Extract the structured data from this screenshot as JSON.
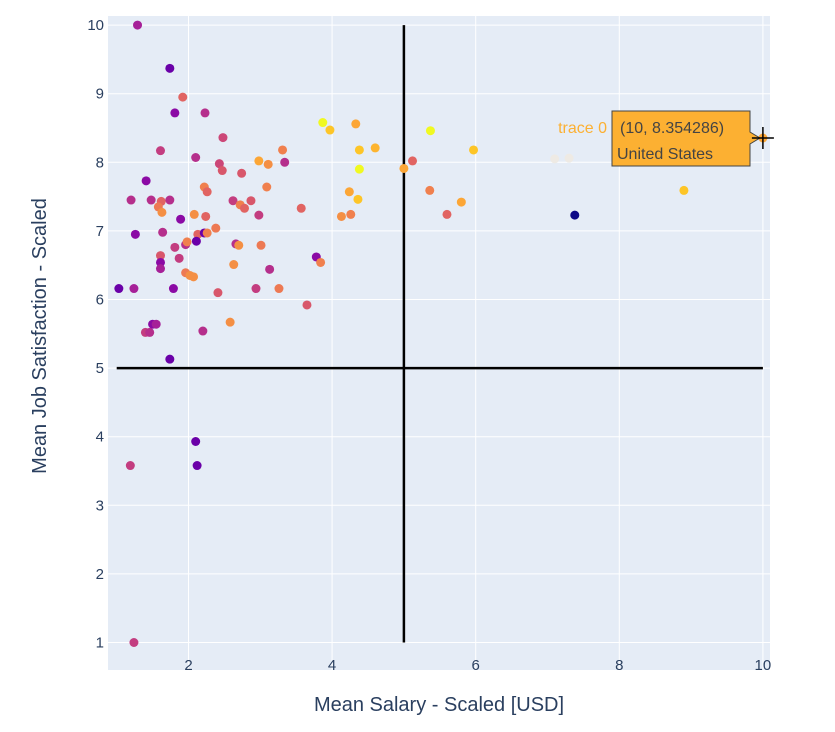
{
  "chart_data": {
    "type": "scatter",
    "title": "",
    "xlabel": "Mean Salary - Scaled [USD]",
    "ylabel": "Mean Job Satisfaction - Scaled",
    "xlim": [
      0.95,
      10.05
    ],
    "ylim": [
      0.95,
      10.05
    ],
    "xticks": [
      2,
      4,
      6,
      8,
      10
    ],
    "yticks": [
      1,
      2,
      3,
      4,
      5,
      6,
      7,
      8,
      9,
      10
    ],
    "grid": true,
    "plot_bg": "#e5ecf6",
    "reference_lines": {
      "x": 5,
      "y": 5,
      "color": "#000000"
    },
    "series": [
      {
        "points": [
          {
            "x": 1.29,
            "y": 10.0,
            "c": "#a62098"
          },
          {
            "x": 1.74,
            "y": 9.37,
            "c": "#6a00a8"
          },
          {
            "x": 1.92,
            "y": 8.95,
            "c": "#e16462"
          },
          {
            "x": 1.81,
            "y": 8.72,
            "c": "#8b0aa5"
          },
          {
            "x": 2.23,
            "y": 8.72,
            "c": "#b52f8c"
          },
          {
            "x": 2.48,
            "y": 8.36,
            "c": "#cc4778"
          },
          {
            "x": 1.61,
            "y": 8.17,
            "c": "#c33d80"
          },
          {
            "x": 2.1,
            "y": 8.07,
            "c": "#b52f8c"
          },
          {
            "x": 2.43,
            "y": 7.98,
            "c": "#cc4778"
          },
          {
            "x": 2.47,
            "y": 7.88,
            "c": "#d8576b"
          },
          {
            "x": 2.98,
            "y": 8.02,
            "c": "#fca636"
          },
          {
            "x": 3.11,
            "y": 7.97,
            "c": "#f48f44"
          },
          {
            "x": 3.31,
            "y": 8.18,
            "c": "#f0804e"
          },
          {
            "x": 3.34,
            "y": 8.0,
            "c": "#b52f8c"
          },
          {
            "x": 1.41,
            "y": 7.73,
            "c": "#8b0aa5"
          },
          {
            "x": 2.22,
            "y": 7.64,
            "c": "#f0804e"
          },
          {
            "x": 2.26,
            "y": 7.57,
            "c": "#e16462"
          },
          {
            "x": 2.74,
            "y": 7.84,
            "c": "#d8576b"
          },
          {
            "x": 3.09,
            "y": 7.64,
            "c": "#f0804e"
          },
          {
            "x": 1.2,
            "y": 7.45,
            "c": "#b52f8c"
          },
          {
            "x": 1.48,
            "y": 7.45,
            "c": "#b52f8c"
          },
          {
            "x": 1.62,
            "y": 7.43,
            "c": "#e16462"
          },
          {
            "x": 1.58,
            "y": 7.35,
            "c": "#ed7953"
          },
          {
            "x": 1.63,
            "y": 7.27,
            "c": "#f48f44"
          },
          {
            "x": 1.74,
            "y": 7.45,
            "c": "#b52f8c"
          },
          {
            "x": 1.89,
            "y": 7.17,
            "c": "#8b0aa5"
          },
          {
            "x": 2.08,
            "y": 7.24,
            "c": "#f48f44"
          },
          {
            "x": 2.24,
            "y": 7.21,
            "c": "#e16462"
          },
          {
            "x": 2.62,
            "y": 7.44,
            "c": "#c33d80"
          },
          {
            "x": 2.72,
            "y": 7.38,
            "c": "#f0804e"
          },
          {
            "x": 2.78,
            "y": 7.33,
            "c": "#e16462"
          },
          {
            "x": 2.87,
            "y": 7.44,
            "c": "#d8576b"
          },
          {
            "x": 2.98,
            "y": 7.23,
            "c": "#c33d80"
          },
          {
            "x": 2.66,
            "y": 6.81,
            "c": "#b52f8c"
          },
          {
            "x": 2.7,
            "y": 6.79,
            "c": "#f48f44"
          },
          {
            "x": 3.01,
            "y": 6.79,
            "c": "#ed7953"
          },
          {
            "x": 3.57,
            "y": 7.33,
            "c": "#e16462"
          },
          {
            "x": 1.26,
            "y": 6.95,
            "c": "#8b0aa5"
          },
          {
            "x": 1.64,
            "y": 6.98,
            "c": "#b52f8c"
          },
          {
            "x": 1.81,
            "y": 6.76,
            "c": "#c33d80"
          },
          {
            "x": 1.96,
            "y": 6.8,
            "c": "#b52f8c"
          },
          {
            "x": 1.98,
            "y": 6.84,
            "c": "#f0804e"
          },
          {
            "x": 2.13,
            "y": 6.95,
            "c": "#e16462"
          },
          {
            "x": 2.22,
            "y": 6.97,
            "c": "#6a00a8"
          },
          {
            "x": 2.26,
            "y": 6.97,
            "c": "#f0804e"
          },
          {
            "x": 2.38,
            "y": 7.04,
            "c": "#ed7953"
          },
          {
            "x": 2.11,
            "y": 6.85,
            "c": "#6a00a8"
          },
          {
            "x": 1.61,
            "y": 6.64,
            "c": "#d8576b"
          },
          {
            "x": 1.61,
            "y": 6.54,
            "c": "#8b0aa5"
          },
          {
            "x": 1.61,
            "y": 6.45,
            "c": "#a62098"
          },
          {
            "x": 1.87,
            "y": 6.6,
            "c": "#c33d80"
          },
          {
            "x": 1.96,
            "y": 6.39,
            "c": "#ed7953"
          },
          {
            "x": 2.02,
            "y": 6.35,
            "c": "#f48f44"
          },
          {
            "x": 2.07,
            "y": 6.33,
            "c": "#f48f44"
          },
          {
            "x": 2.63,
            "y": 6.51,
            "c": "#f48f44"
          },
          {
            "x": 3.13,
            "y": 6.44,
            "c": "#b52f8c"
          },
          {
            "x": 3.78,
            "y": 6.62,
            "c": "#8b0aa5"
          },
          {
            "x": 3.84,
            "y": 6.54,
            "c": "#f0804e"
          },
          {
            "x": 1.03,
            "y": 6.16,
            "c": "#6a00a8"
          },
          {
            "x": 1.24,
            "y": 6.16,
            "c": "#a62098"
          },
          {
            "x": 1.79,
            "y": 6.16,
            "c": "#8b0aa5"
          },
          {
            "x": 2.41,
            "y": 6.1,
            "c": "#d8576b"
          },
          {
            "x": 2.94,
            "y": 6.16,
            "c": "#c33d80"
          },
          {
            "x": 3.26,
            "y": 6.16,
            "c": "#ed7953"
          },
          {
            "x": 3.65,
            "y": 5.92,
            "c": "#d8576b"
          },
          {
            "x": 1.5,
            "y": 5.64,
            "c": "#8b0aa5"
          },
          {
            "x": 1.55,
            "y": 5.64,
            "c": "#a62098"
          },
          {
            "x": 1.4,
            "y": 5.52,
            "c": "#c33d80"
          },
          {
            "x": 1.46,
            "y": 5.52,
            "c": "#b52f8c"
          },
          {
            "x": 2.2,
            "y": 5.54,
            "c": "#b52f8c"
          },
          {
            "x": 2.58,
            "y": 5.67,
            "c": "#f48f44"
          },
          {
            "x": 1.74,
            "y": 5.13,
            "c": "#6a00a8"
          },
          {
            "x": 2.1,
            "y": 3.93,
            "c": "#6a00a8"
          },
          {
            "x": 2.12,
            "y": 3.58,
            "c": "#6a00a8"
          },
          {
            "x": 1.19,
            "y": 3.58,
            "c": "#c33d80"
          },
          {
            "x": 1.24,
            "y": 1.0,
            "c": "#c33d80"
          },
          {
            "x": 3.87,
            "y": 8.58,
            "c": "#f0f921"
          },
          {
            "x": 3.97,
            "y": 8.47,
            "c": "#fdc527"
          },
          {
            "x": 4.33,
            "y": 8.56,
            "c": "#fca636"
          },
          {
            "x": 4.38,
            "y": 8.18,
            "c": "#fdc527"
          },
          {
            "x": 4.6,
            "y": 8.21,
            "c": "#fdb42f"
          },
          {
            "x": 4.38,
            "y": 7.9,
            "c": "#f0f921"
          },
          {
            "x": 4.24,
            "y": 7.57,
            "c": "#fca636"
          },
          {
            "x": 4.36,
            "y": 7.46,
            "c": "#fdc527"
          },
          {
            "x": 4.13,
            "y": 7.21,
            "c": "#f48f44"
          },
          {
            "x": 4.26,
            "y": 7.24,
            "c": "#f0804e"
          },
          {
            "x": 5.0,
            "y": 7.91,
            "c": "#fca636"
          },
          {
            "x": 5.12,
            "y": 8.02,
            "c": "#e16462"
          },
          {
            "x": 5.37,
            "y": 8.46,
            "c": "#f0f921"
          },
          {
            "x": 5.97,
            "y": 8.18,
            "c": "#fdc527"
          },
          {
            "x": 5.36,
            "y": 7.59,
            "c": "#f0804e"
          },
          {
            "x": 5.8,
            "y": 7.42,
            "c": "#fca636"
          },
          {
            "x": 5.6,
            "y": 7.24,
            "c": "#e16462"
          },
          {
            "x": 7.1,
            "y": 8.05,
            "c": "#eeeae4"
          },
          {
            "x": 7.3,
            "y": 8.06,
            "c": "#eeeae4"
          },
          {
            "x": 7.38,
            "y": 7.23,
            "c": "#0d0887"
          },
          {
            "x": 8.9,
            "y": 7.59,
            "c": "#fdc527"
          },
          {
            "x": 10.0,
            "y": 8.354286,
            "c": "#fca636"
          }
        ]
      }
    ],
    "hover": {
      "trace": "trace 0",
      "coords": "(10, 8.354286)",
      "label": "United States",
      "x": 10,
      "y": 8.354286,
      "bg": "#fcb032"
    }
  }
}
